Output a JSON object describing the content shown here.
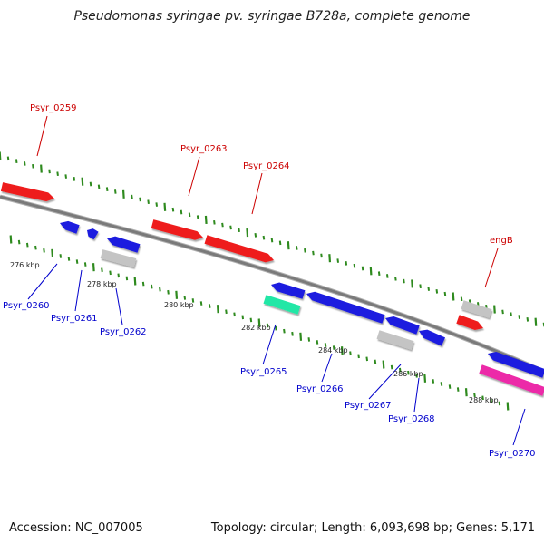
{
  "title": "Pseudomonas syringae pv. syringae B728a, complete genome",
  "footer": {
    "accession": "Accession: NC_007005",
    "summary": "Topology: circular; Length: 6,093,698 bp; Genes: 5,171"
  },
  "colors": {
    "forward_gene": "#ee1c1c",
    "reverse_gene": "#1a1adf",
    "other_gene": "#c4c4c4",
    "rna_gene": "#22e7a6",
    "special_gene": "#ec2aa8",
    "backbone": "#808080",
    "tick": "#2e8a1e",
    "forward_label": "#cc0000",
    "reverse_label": "#0000cc"
  },
  "scale_labels": [
    "276 kbp",
    "278 kbp",
    "280 kbp",
    "282 kbp",
    "284 kbp",
    "286 kbp",
    "288 kbp"
  ],
  "forward_genes": [
    {
      "label": "Psyr_0259",
      "color": "forward_gene"
    },
    {
      "label": "Psyr_0263",
      "color": "forward_gene"
    },
    {
      "label": "Psyr_0264",
      "color": "forward_gene"
    },
    {
      "label": "engB",
      "color": "forward_gene"
    },
    {
      "label": "",
      "color": "other_gene"
    }
  ],
  "reverse_genes": [
    {
      "label": "Psyr_0260",
      "color": "reverse_gene"
    },
    {
      "label": "Psyr_0261",
      "color": "reverse_gene"
    },
    {
      "label": "Psyr_0262",
      "color": "reverse_gene"
    },
    {
      "label": "",
      "color": "other_gene"
    },
    {
      "label": "",
      "color": "reverse_gene"
    },
    {
      "label": "Psyr_0265",
      "color": "rna_gene"
    },
    {
      "label": "Psyr_0266",
      "color": "reverse_gene"
    },
    {
      "label": "Psyr_0267",
      "color": "reverse_gene"
    },
    {
      "label": "",
      "color": "other_gene"
    },
    {
      "label": "Psyr_0268",
      "color": "reverse_gene"
    },
    {
      "label": "",
      "color": "reverse_gene"
    },
    {
      "label": "Psyr_0270",
      "color": "special_gene"
    }
  ]
}
